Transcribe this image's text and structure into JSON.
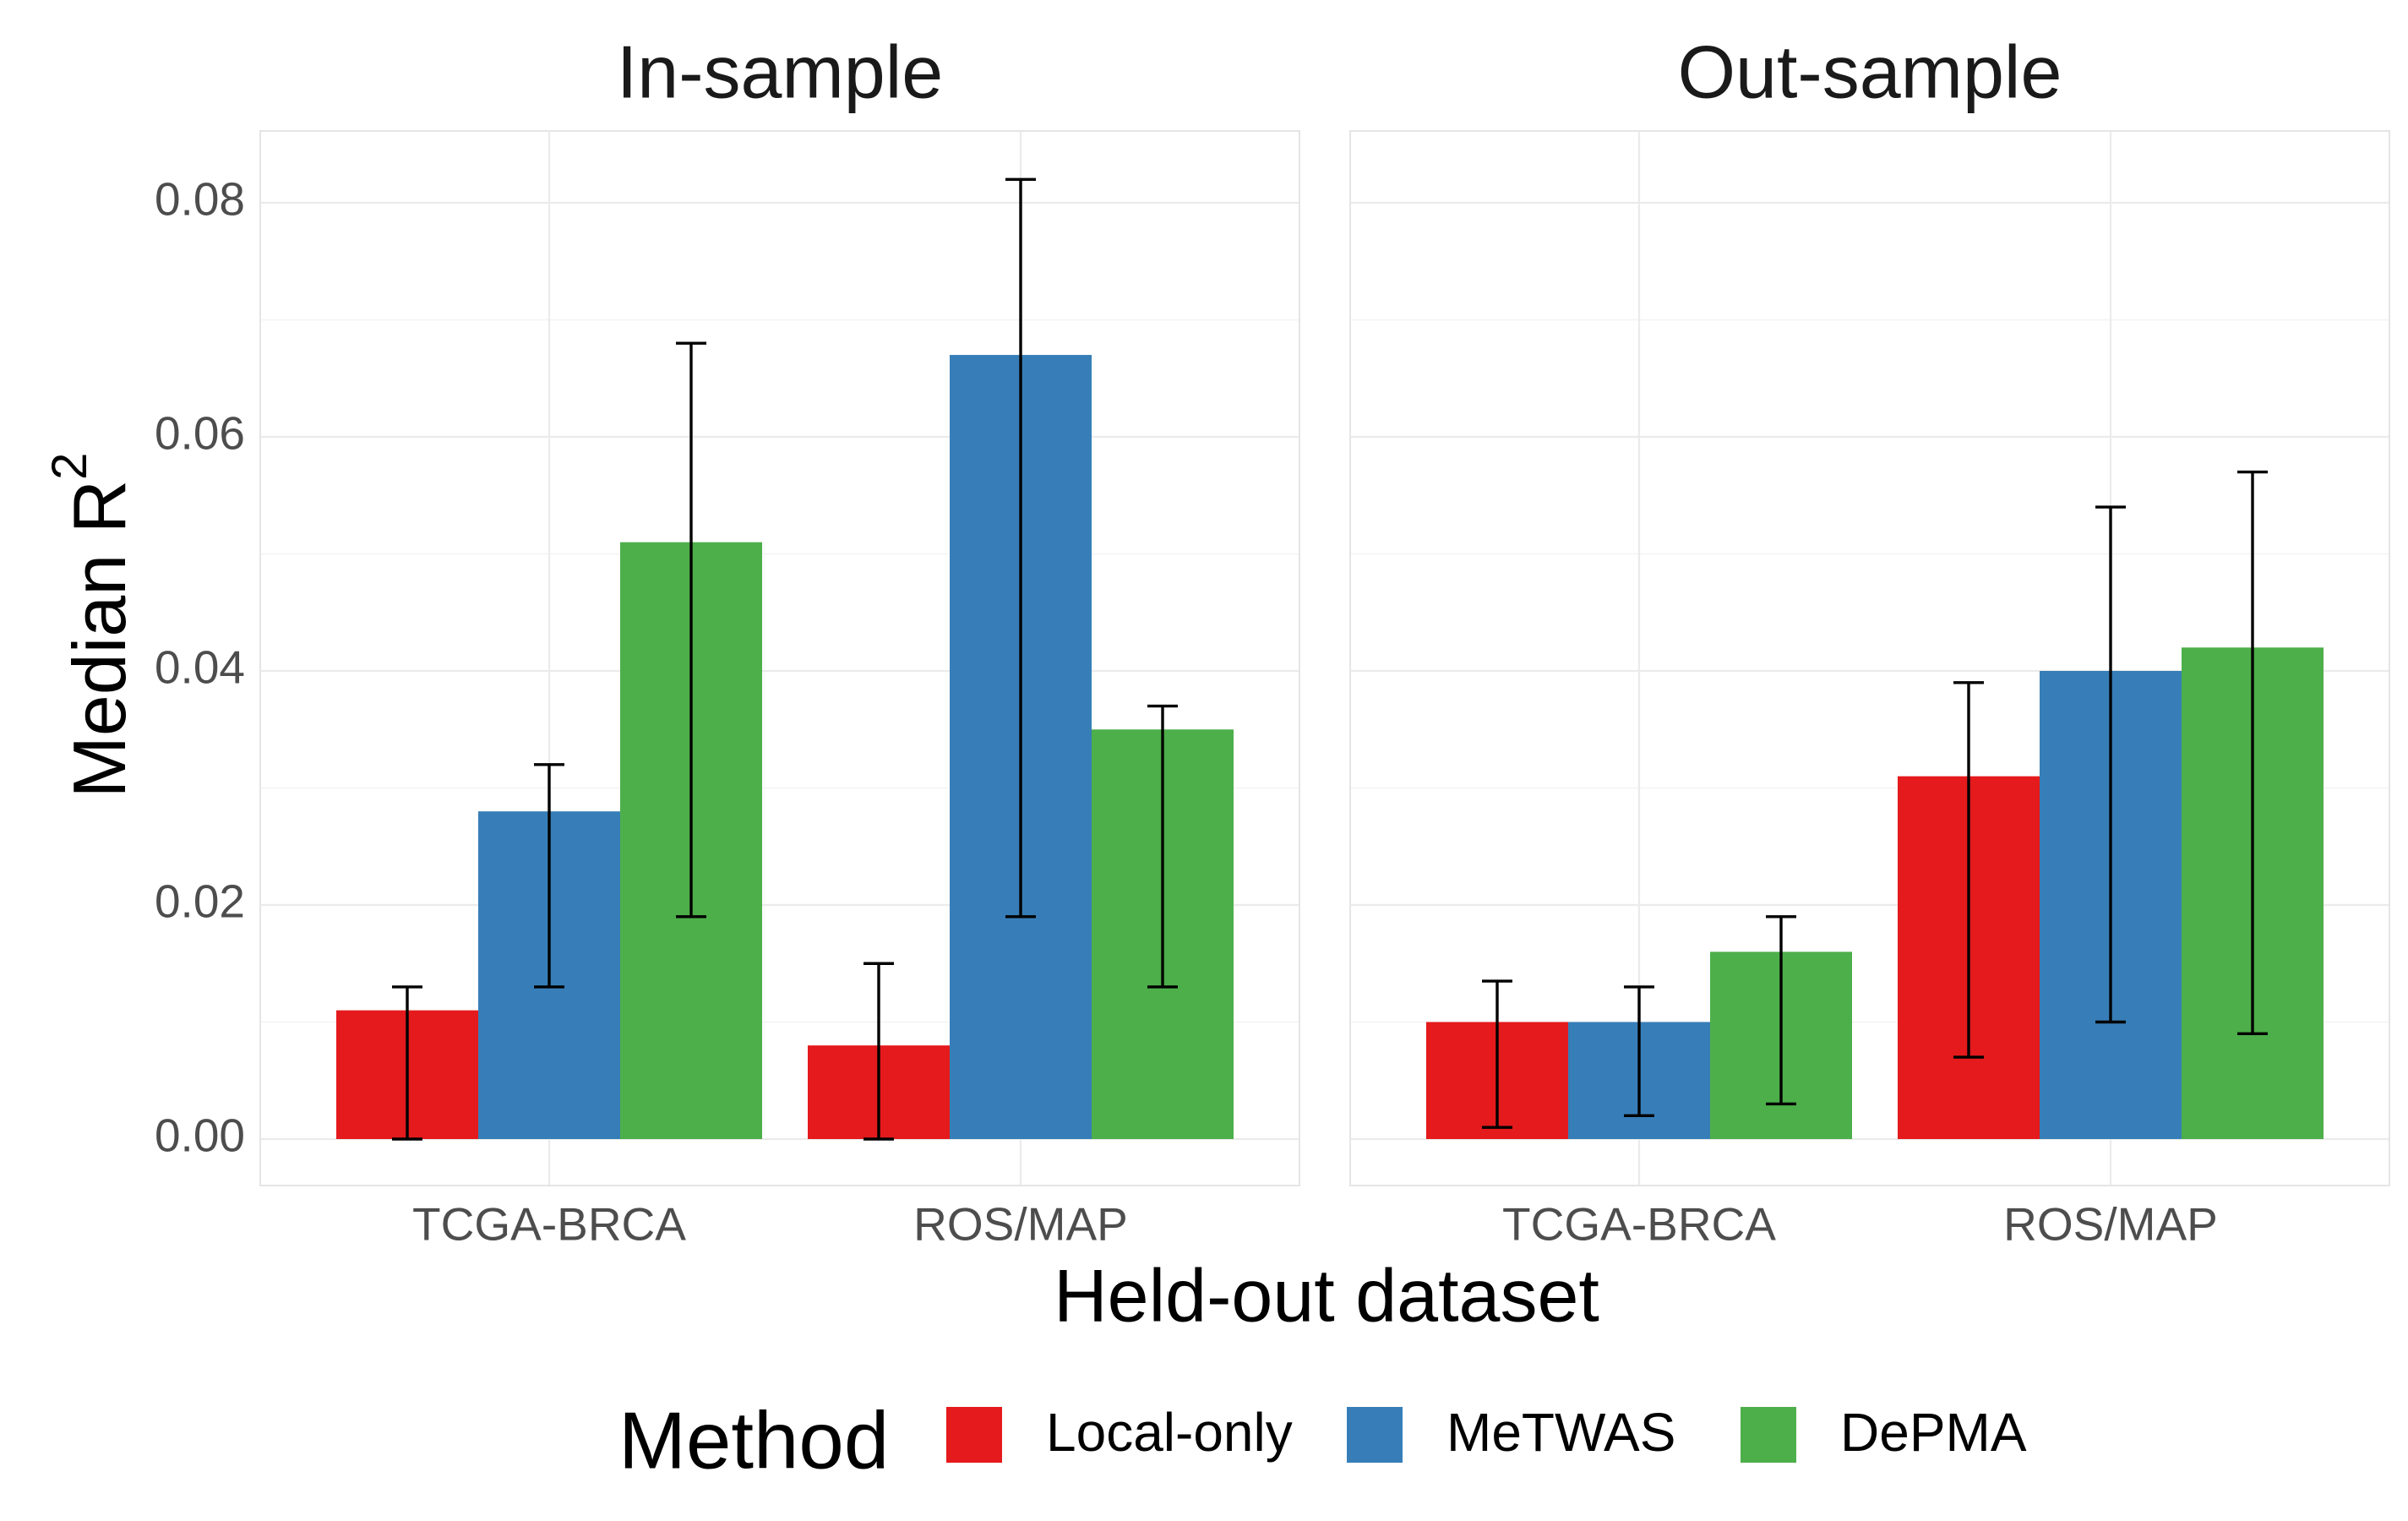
{
  "chart_data": {
    "type": "bar",
    "title": "",
    "xlabel": "Held-out dataset",
    "ylabel": "Median",
    "ylabel_base": "R",
    "ylabel_sup": "2",
    "ylim": [
      -0.004,
      0.086
    ],
    "yticks": [
      0.0,
      0.02,
      0.04,
      0.06,
      0.08
    ],
    "ytick_labels": [
      "0.00",
      "0.02",
      "0.04",
      "0.06",
      "0.08"
    ],
    "grid": true,
    "categories": [
      "TCGA-BRCA",
      "ROS/MAP"
    ],
    "legend": {
      "title": "Method",
      "position": "bottom",
      "entries": [
        "Local-only",
        "MeTWAS",
        "DePMA"
      ]
    },
    "colors": {
      "Local-only": "#e41a1c",
      "MeTWAS": "#377eb8",
      "DePMA": "#4daf4a"
    },
    "panels": [
      {
        "title": "In-sample",
        "series": [
          {
            "name": "Local-only",
            "values": [
              0.011,
              0.008
            ],
            "lower": [
              0.0,
              0.0
            ],
            "upper": [
              0.013,
              0.015
            ]
          },
          {
            "name": "MeTWAS",
            "values": [
              0.028,
              0.067
            ],
            "lower": [
              0.013,
              0.019
            ],
            "upper": [
              0.032,
              0.082
            ]
          },
          {
            "name": "DePMA",
            "values": [
              0.051,
              0.035
            ],
            "lower": [
              0.019,
              0.013
            ],
            "upper": [
              0.068,
              0.037
            ]
          }
        ]
      },
      {
        "title": "Out-sample",
        "series": [
          {
            "name": "Local-only",
            "values": [
              0.01,
              0.031
            ],
            "lower": [
              0.001,
              0.007
            ],
            "upper": [
              0.0135,
              0.039
            ]
          },
          {
            "name": "MeTWAS",
            "values": [
              0.01,
              0.04
            ],
            "lower": [
              0.002,
              0.01
            ],
            "upper": [
              0.013,
              0.054
            ]
          },
          {
            "name": "DePMA",
            "values": [
              0.016,
              0.042
            ],
            "lower": [
              0.003,
              0.009
            ],
            "upper": [
              0.019,
              0.057
            ]
          }
        ]
      }
    ]
  }
}
